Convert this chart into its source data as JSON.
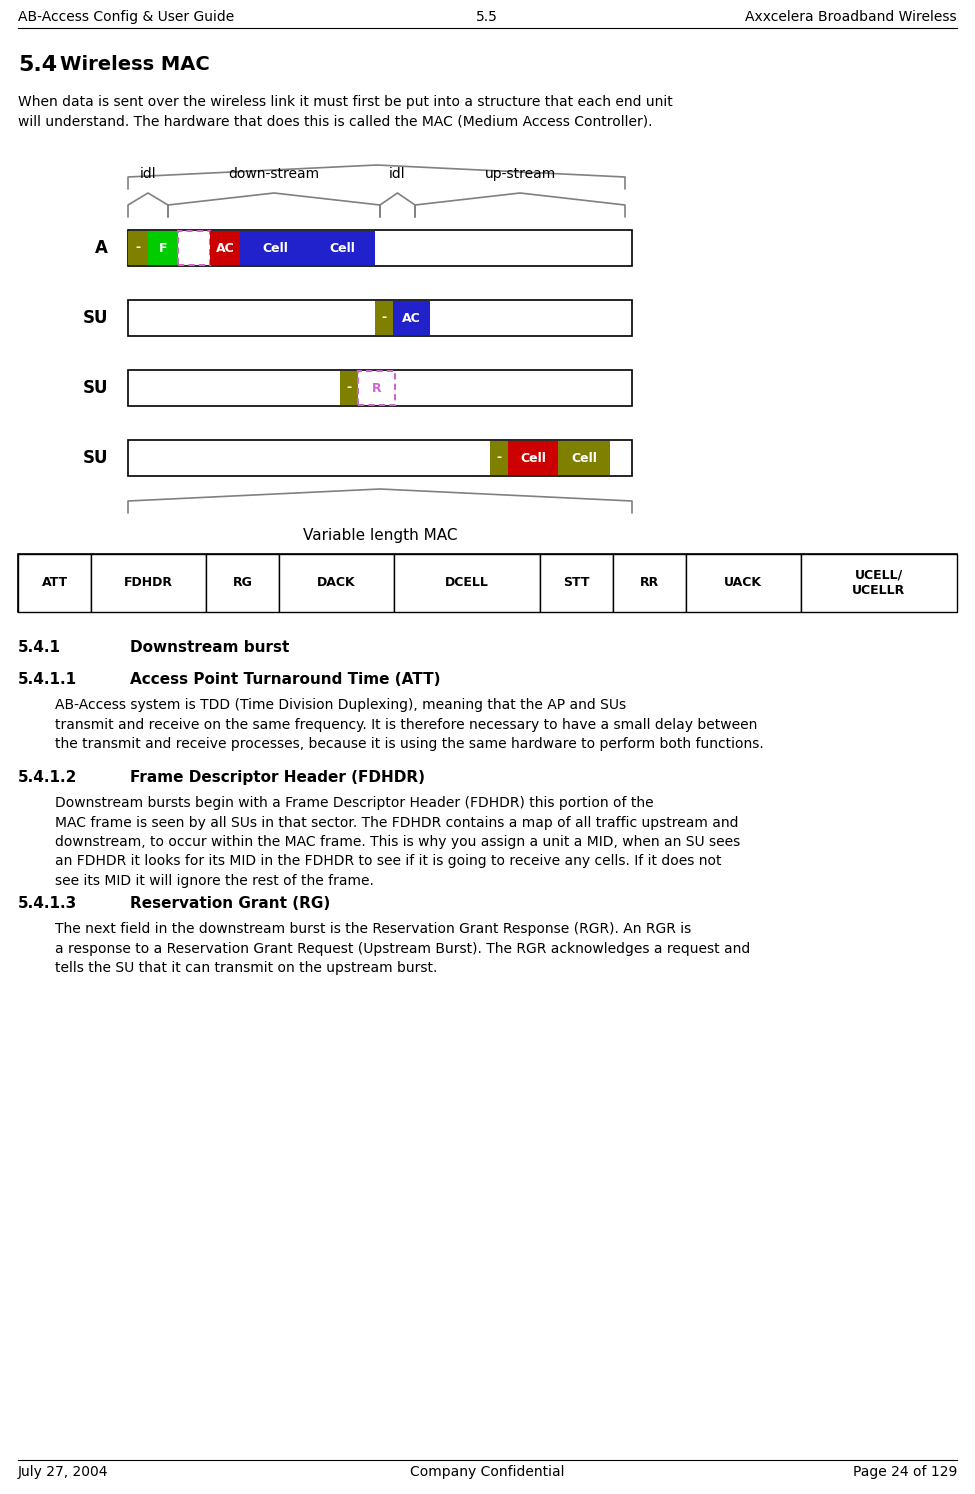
{
  "header_left": "AB-Access Config & User Guide",
  "header_center": "5.5",
  "header_right": "Axxcelera Broadband Wireless",
  "footer_left": "July 27, 2004",
  "footer_center": "Company Confidential",
  "footer_right": "Page 24 of 129",
  "section_title": "5.4   Wireless MAC",
  "intro_text": "When data is sent over the wireless link it must first be put into a structure that each end unit\nwill understand. The hardware that does this is called the MAC (Medium Access Controller).",
  "diagram_labels_top": [
    "idl",
    "down-stream",
    "idl",
    "up-stream"
  ],
  "row_labels": [
    "A",
    "SU",
    "SU",
    "SU"
  ],
  "bottom_label": "Variable length MAC",
  "table_headers": [
    "ATT",
    "FDHDR",
    "RG",
    "DACK",
    "DCELL",
    "STT",
    "RR",
    "UACK",
    "UCELL/\nUCELLR"
  ],
  "section_541": "5.4.1        Downstream burst",
  "section_5411": "5.4.1.1        Access Point Turnaround Time (ATT)",
  "text_5411": "AB-Access system is TDD (Time Division Duplexing), meaning that the AP and SUs\ntransmit and receive on the same frequency. It is therefore necessary to have a small delay between\nthe transmit and receive processes, because it is using the same hardware to perform both functions.",
  "section_5412": "5.4.1.2        Frame Descriptor Header (FDHDR)",
  "text_5412": "Downstream bursts begin with a Frame Descriptor Header (FDHDR) this portion of the\nMAC frame is seen by all SUs in that sector. The FDHDR contains a map of all traffic upstream and\ndownstream, to occur within the MAC frame. This is why you assign a unit a MID, when an SU sees\nan FDHDR it looks for its MID in the FDHDR to see if it is going to receive any cells. If it does not\nsee its MID it will ignore the rest of the frame.",
  "section_5413": "5.4.1.3        Reservation Grant (RG)",
  "text_5413": "The next field in the downstream burst is the Reservation Grant Response (RGR). An RGR is\na response to a Reservation Grant Request (Upstream Burst). The RGR acknowledges a request and\ntells the SU that it can transmit on the upstream burst.",
  "bg_color": "#ffffff"
}
